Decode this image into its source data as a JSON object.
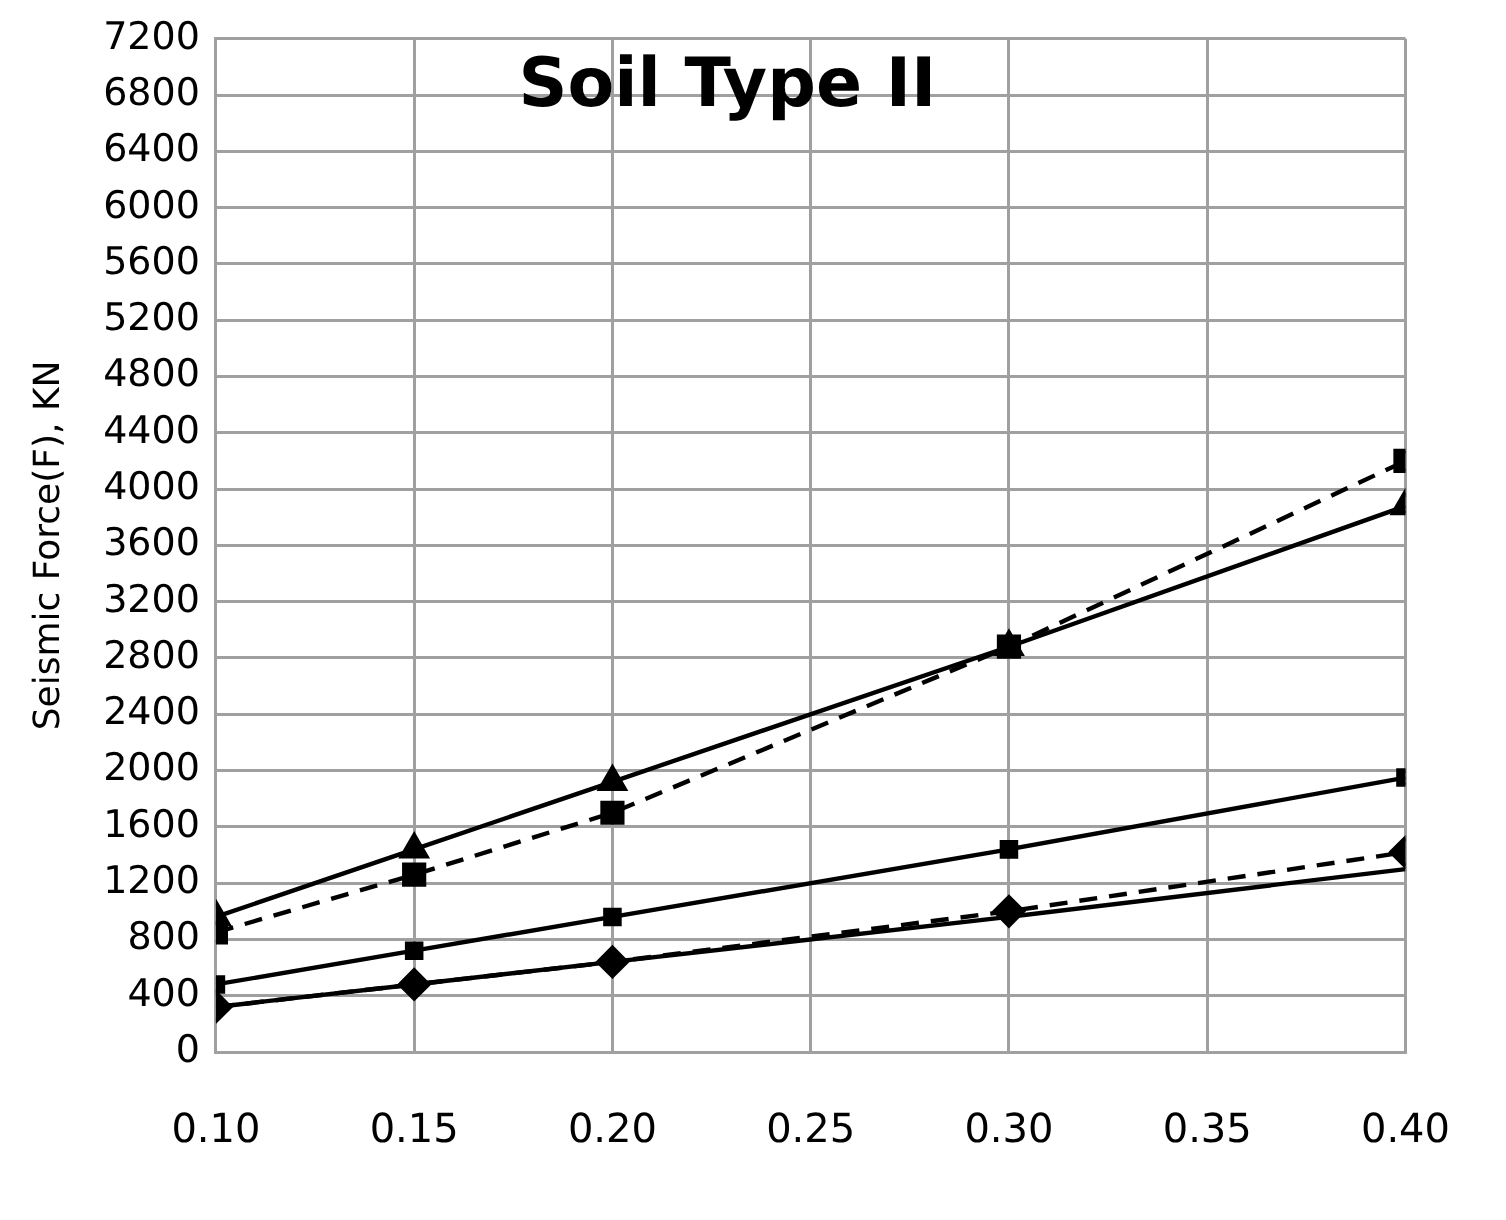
{
  "chart_data": {
    "type": "line",
    "title": "Soil Type II",
    "ylabel": "Seismic Force(F), KN",
    "x": [
      0.1,
      0.15,
      0.2,
      0.3,
      0.4
    ],
    "series": [
      {
        "color": "#000000",
        "marker": "triangle",
        "line_style": "solid",
        "values": [
          960,
          1440,
          1920,
          2880,
          3880
        ]
      },
      {
        "color": "#000000",
        "marker": "square",
        "line_style": "dashed",
        "values": [
          850,
          1260,
          1700,
          2880,
          4200
        ]
      },
      {
        "color": "#000000",
        "marker": "square",
        "line_style": "solid",
        "values": [
          480,
          720,
          960,
          1440,
          1950
        ]
      },
      {
        "color": "#000000",
        "marker": "diamond",
        "line_style": "dashed",
        "values": [
          320,
          480,
          640,
          1000,
          1420
        ]
      },
      {
        "color": "#000000",
        "marker": "none",
        "line_style": "solid",
        "values": [
          320,
          480,
          640,
          960,
          1300
        ]
      }
    ],
    "xlim": [
      0.1,
      0.4
    ],
    "xticks": [
      {
        "value": 0.1,
        "label": "0.10"
      },
      {
        "value": 0.15,
        "label": "0.15"
      },
      {
        "value": 0.2,
        "label": "0.20"
      },
      {
        "value": 0.25,
        "label": "0.25"
      },
      {
        "value": 0.3,
        "label": "0.30"
      },
      {
        "value": 0.35,
        "label": "0.35"
      },
      {
        "value": 0.4,
        "label": "0.40"
      }
    ],
    "ylim": [
      0,
      7200
    ],
    "yticks": [
      0,
      400,
      800,
      1200,
      1600,
      2000,
      2400,
      2800,
      3200,
      3600,
      4000,
      4400,
      4800,
      5200,
      5600,
      6000,
      6400,
      6800,
      7200
    ],
    "grid": true,
    "legend": false
  }
}
